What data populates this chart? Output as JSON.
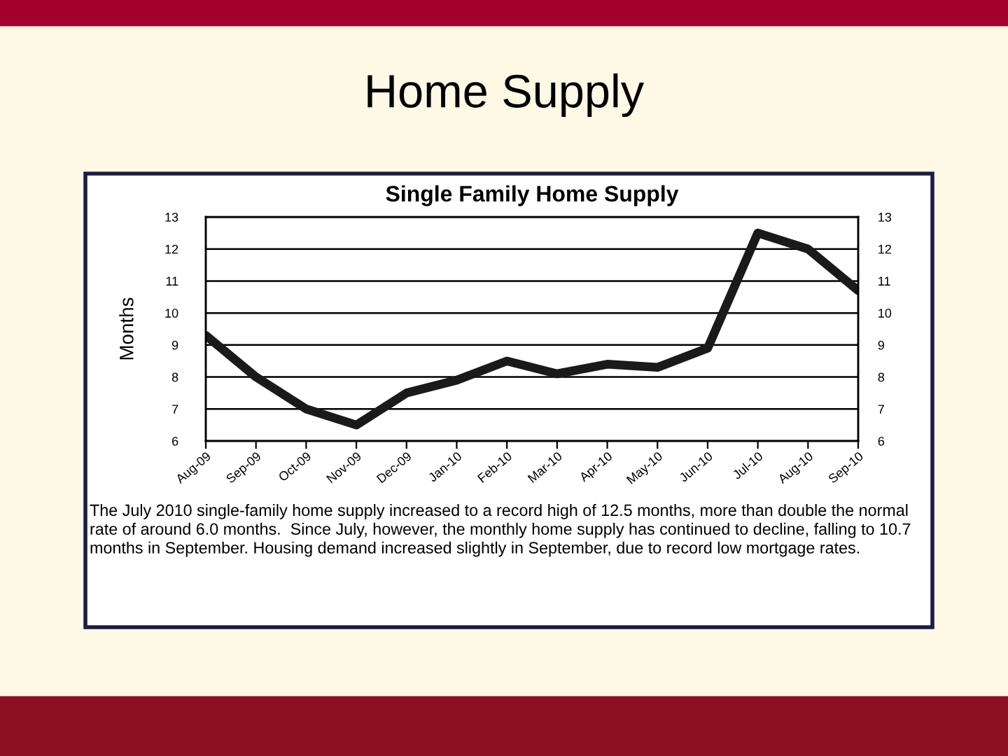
{
  "chart_data": {
    "type": "line",
    "title": "Home Supply",
    "subtitle": "Single Family Home Supply",
    "ylabel": "Months",
    "categories": [
      "Aug-09",
      "Sep-09",
      "Oct-09",
      "Nov-09",
      "Dec-09",
      "Jan-10",
      "Feb-10",
      "Mar-10",
      "Apr-10",
      "May-10",
      "Jun-10",
      "Jul-10",
      "Aug-10",
      "Sep-10"
    ],
    "series": [
      {
        "color": "#1a1a1a",
        "values": [
          9.3,
          8.0,
          7.0,
          6.5,
          7.5,
          7.9,
          8.5,
          8.1,
          8.4,
          8.3,
          8.9,
          12.5,
          12.0,
          10.7
        ]
      }
    ],
    "ylim": [
      6,
      13
    ],
    "yticks": [
      6,
      7,
      8,
      9,
      10,
      11,
      12,
      13
    ],
    "y2lim": [
      6,
      13
    ],
    "y2ticks": [
      6,
      7,
      8,
      9,
      10,
      11,
      12,
      13
    ],
    "grid": "y",
    "line_style": "solid",
    "annotations": [
      "The July 2010 single-family home supply increased to a record high of 12.5 months, more than double the normal rate of around 6.0 months.  Since July, however, the monthly home supply has continued to decline, falling to 10.7 months in September. Housing demand increased slightly in September, due to record low mortgage rates."
    ]
  }
}
